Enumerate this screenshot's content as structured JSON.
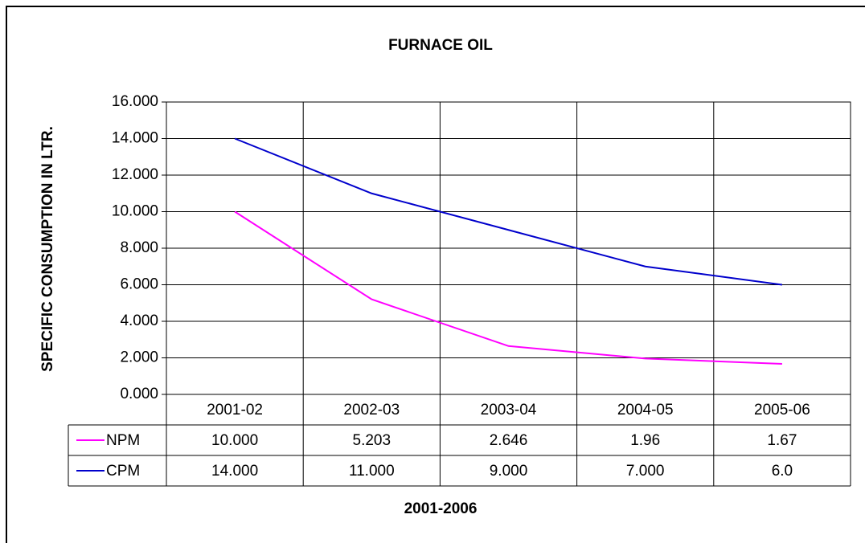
{
  "chart_data": {
    "type": "line",
    "title": "FURNACE OIL",
    "x_label": "2001-2006",
    "y_label": "SPECIFIC CONSUMPTION IN LTR.",
    "categories": [
      "2001-02",
      "2002-03",
      "2003-04",
      "2004-05",
      "2005-06"
    ],
    "series": [
      {
        "name": "NPM",
        "color": "#ff00ff",
        "values": [
          10,
          5.203,
          2.646,
          1.96,
          1.67
        ],
        "value_labels": [
          "10.000",
          "5.203",
          "2.646",
          "1.96",
          "1.67"
        ]
      },
      {
        "name": "CPM",
        "color": "#0000cc",
        "values": [
          14,
          11,
          9,
          7,
          6
        ],
        "value_labels": [
          "14.000",
          "11.000",
          "9.000",
          "7.000",
          "6.0"
        ]
      }
    ],
    "ylim": [
      0,
      16
    ],
    "yticks": [
      {
        "value": 0,
        "label": "0.000"
      },
      {
        "value": 2,
        "label": "2.000"
      },
      {
        "value": 4,
        "label": "4.000"
      },
      {
        "value": 6,
        "label": "6.000"
      },
      {
        "value": 8,
        "label": "8.000"
      },
      {
        "value": 10,
        "label": "10.000"
      },
      {
        "value": 12,
        "label": "12.000"
      },
      {
        "value": 14,
        "label": "14.000"
      },
      {
        "value": 16,
        "label": "16.000"
      }
    ],
    "grid": true
  }
}
